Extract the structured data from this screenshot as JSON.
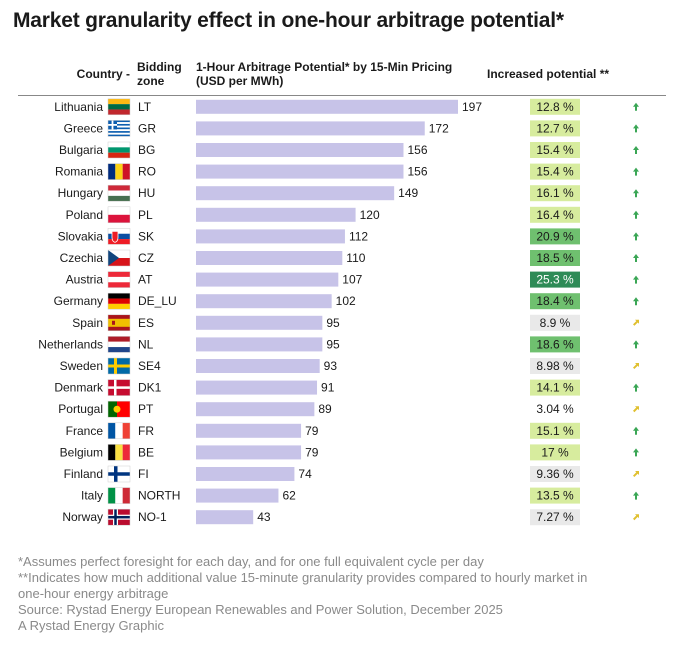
{
  "title": "Market granularity effect in one-hour arbitrage potential*",
  "headers": {
    "country": "Country -",
    "zone_line1": "Bidding",
    "zone_line2": "zone",
    "bar_line1": "1-Hour Arbitrage Potential* by 15-Min Pricing",
    "bar_line2": "(USD per MWh)",
    "increase": "Increased potential **"
  },
  "colors": {
    "bar": "#c7c3e8",
    "inc_high": "#2e8b57",
    "inc_mid": "#6fc06f",
    "inc_low": "#d7ec9e",
    "inc_neutral": "#e9e9e9",
    "arrow_up": "#3aa655",
    "arrow_side": "#e0c030"
  },
  "chart_data": {
    "type": "bar",
    "orientation": "horizontal",
    "title": "Market granularity effect in one-hour arbitrage potential*",
    "xlabel": "1-Hour Arbitrage Potential* by 15-Min Pricing (USD per MWh)",
    "xlim": [
      0,
      197
    ],
    "grid": false,
    "categories": [
      "Lithuania",
      "Greece",
      "Bulgaria",
      "Romania",
      "Hungary",
      "Poland",
      "Slovakia",
      "Czechia",
      "Austria",
      "Germany",
      "Spain",
      "Netherlands",
      "Sweden",
      "Denmark",
      "Portugal",
      "France",
      "Belgium",
      "Finland",
      "Italy",
      "Norway"
    ],
    "zones": [
      "LT",
      "GR",
      "BG",
      "RO",
      "HU",
      "PL",
      "SK",
      "CZ",
      "AT",
      "DE_LU",
      "ES",
      "NL",
      "SE4",
      "DK1",
      "PT",
      "FR",
      "BE",
      "FI",
      "NORTH",
      "NO-1"
    ],
    "values": [
      197,
      172,
      156,
      156,
      149,
      120,
      112,
      110,
      107,
      102,
      95,
      95,
      93,
      91,
      89,
      79,
      79,
      74,
      62,
      43
    ],
    "value_labels": [
      "197",
      "172",
      "156",
      "156",
      "149",
      "120",
      "112",
      "110",
      "107",
      "102",
      "95",
      "95",
      "93",
      "91",
      "89",
      "79",
      "79",
      "74",
      "62",
      "43"
    ],
    "increased_potential_labels": [
      "12.8 %",
      "12.7 %",
      "15.4 %",
      "15.4 %",
      "16.1 %",
      "16.4 %",
      "20.9 %",
      "18.5 %",
      "25.3 %",
      "18.4 %",
      "8.9 %",
      "18.6 %",
      "8.98 %",
      "14.1 %",
      "3.04 %",
      "15.1 %",
      "17 %",
      "9.36 %",
      "13.5 %",
      "7.27 %"
    ],
    "increased_potential_values": [
      12.8,
      12.7,
      15.4,
      15.4,
      16.1,
      16.4,
      20.9,
      18.5,
      25.3,
      18.4,
      8.9,
      18.6,
      8.98,
      14.1,
      3.04,
      15.1,
      17,
      9.36,
      13.5,
      7.27
    ],
    "trend_icons": [
      "arrow-up",
      "arrow-up",
      "arrow-up",
      "arrow-up",
      "arrow-up",
      "arrow-up",
      "arrow-up",
      "arrow-up",
      "arrow-up",
      "arrow-up",
      "arrow-up-right",
      "arrow-up",
      "arrow-up-right",
      "arrow-up",
      "arrow-up-right",
      "arrow-up",
      "arrow-up",
      "arrow-up-right",
      "arrow-up",
      "arrow-up-right"
    ],
    "flag_icons": [
      "lithuania-flag-icon",
      "greece-flag-icon",
      "bulgaria-flag-icon",
      "romania-flag-icon",
      "hungary-flag-icon",
      "poland-flag-icon",
      "slovakia-flag-icon",
      "czechia-flag-icon",
      "austria-flag-icon",
      "germany-flag-icon",
      "spain-flag-icon",
      "netherlands-flag-icon",
      "sweden-flag-icon",
      "denmark-flag-icon",
      "portugal-flag-icon",
      "france-flag-icon",
      "belgium-flag-icon",
      "finland-flag-icon",
      "italy-flag-icon",
      "norway-flag-icon"
    ]
  },
  "footer": {
    "line1": "*Assumes perfect foresight for each day, and for one full equivalent cycle per day",
    "line2": "**Indicates how much additional value 15-minute granularity provides compared to hourly market in",
    "line3": "one-hour energy arbitrage",
    "line4": "Source: Rystad Energy European Renewables and Power Solution, December 2025",
    "line5": "A Rystad Energy Graphic"
  }
}
